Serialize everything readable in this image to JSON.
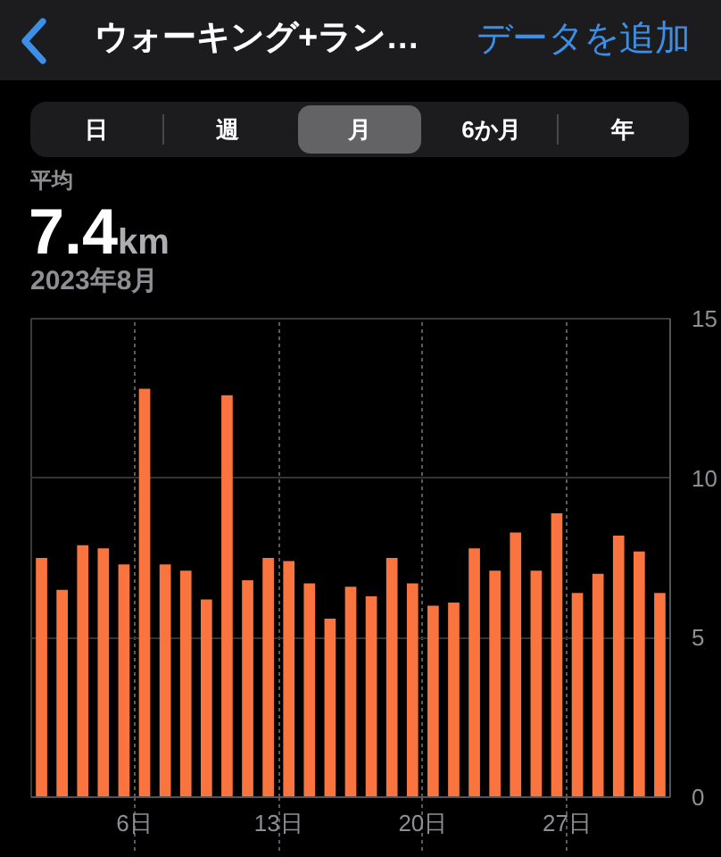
{
  "chart_data": {
    "type": "bar",
    "title": "ウォーキング+ラン…",
    "subtitle": "2023年8月",
    "annotations": [
      "データを追加",
      "日",
      "週",
      "月",
      "6か月",
      "年",
      "平均",
      "7.4",
      "km"
    ],
    "categories": [
      null,
      null,
      null,
      null,
      null,
      "6日",
      null,
      null,
      null,
      null,
      null,
      null,
      "13日",
      null,
      null,
      null,
      null,
      null,
      null,
      "20日",
      null,
      null,
      null,
      null,
      null,
      null,
      "27日",
      null,
      null,
      null,
      null
    ],
    "values": [
      7.5,
      6.5,
      7.9,
      7.8,
      7.3,
      12.8,
      7.3,
      7.1,
      6.2,
      12.6,
      6.8,
      7.5,
      7.4,
      6.7,
      5.6,
      6.6,
      6.3,
      7.5,
      6.7,
      6.0,
      6.1,
      7.8,
      7.1,
      8.3,
      7.1,
      8.9,
      6.4,
      7.0,
      8.2,
      7.7,
      6.4
    ],
    "color": "#f9743f",
    "ylim": [
      0,
      15
    ],
    "yticks": [
      0,
      5,
      10,
      15
    ],
    "grid": true
  }
}
